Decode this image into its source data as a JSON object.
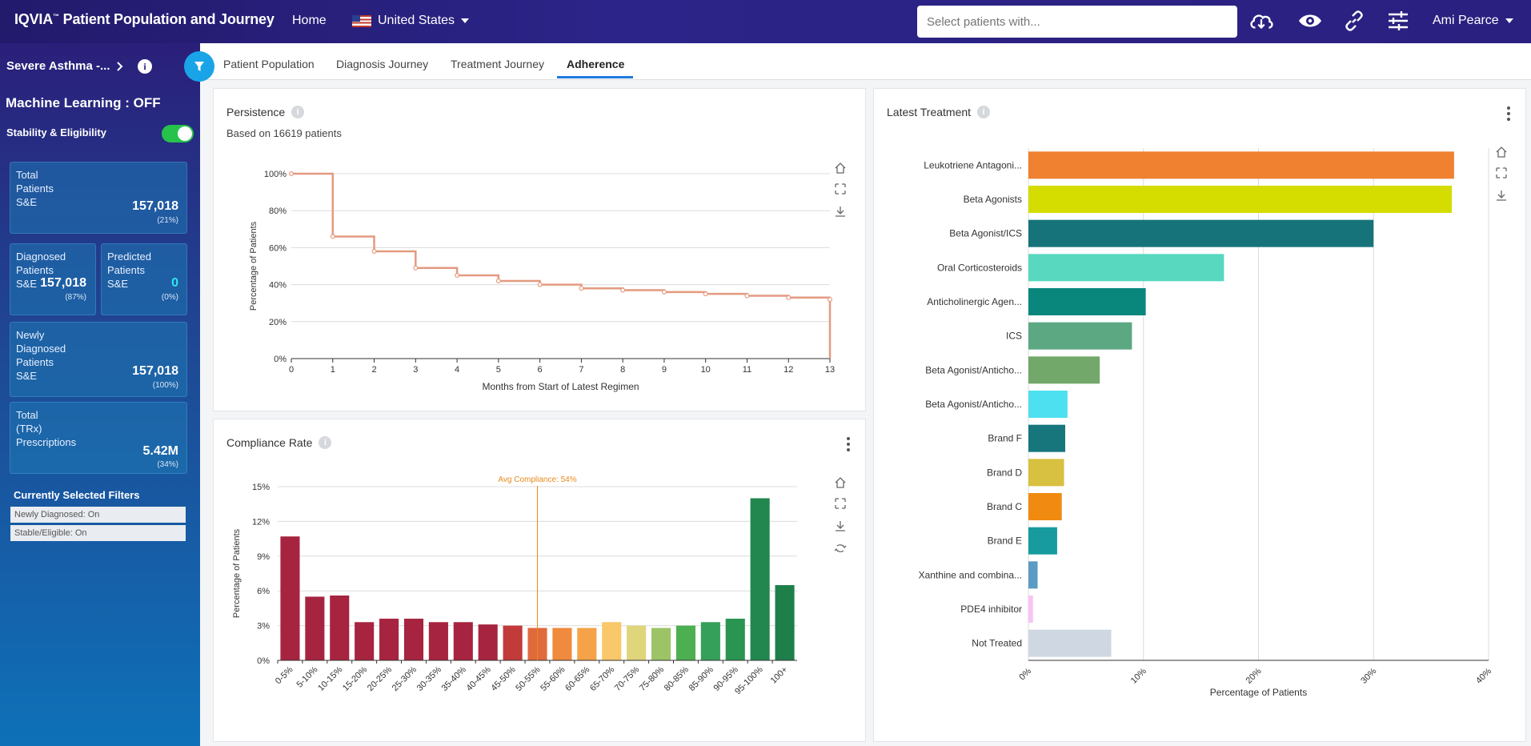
{
  "header": {
    "brand": "IQVIA",
    "brand_tm": "™",
    "app_title": "Patient Population and Journey",
    "home": "Home",
    "country": "United States",
    "search_placeholder": "Select patients with...",
    "user": "Ami Pearce"
  },
  "sidebar": {
    "cohort": "Severe Asthma -...",
    "ml_status": "Machine Learning : OFF",
    "stability_label": "Stability & Eligibility",
    "cards": {
      "total": {
        "label": "Total\nPatients\nS&E",
        "value": "157,018",
        "pct": "(21%)"
      },
      "diagnosed": {
        "label": "Diagnosed\nPatients\nS&E",
        "value": "157,018",
        "pct": "(87%)"
      },
      "predicted": {
        "label": "Predicted\nPatients\nS&E",
        "value": "0",
        "pct": "(0%)"
      },
      "newly": {
        "label": "Newly\nDiagnosed\nPatients\nS&E",
        "value": "157,018",
        "pct": "(100%)"
      },
      "trx": {
        "label": "Total\n(TRx)\nPrescriptions",
        "value": "5.42M",
        "pct": "(34%)"
      }
    },
    "filters_title": "Currently Selected Filters",
    "filters": [
      "Newly Diagnosed: On",
      "Stable/Eligible: On"
    ]
  },
  "tabs": [
    "Patient Population",
    "Diagnosis Journey",
    "Treatment Journey",
    "Adherence"
  ],
  "active_tab": "Adherence",
  "panels": {
    "persistence": {
      "title": "Persistence",
      "subtitle": "Based on 16619 patients"
    },
    "compliance": {
      "title": "Compliance Rate"
    },
    "latest": {
      "title": "Latest Treatment"
    }
  },
  "colors": {
    "step_line": "#e49a80",
    "accent": "#1e7be0"
  },
  "chart_data": [
    {
      "id": "persistence",
      "type": "line",
      "step": true,
      "xlabel": "Months from Start of Latest Regimen",
      "ylabel": "Percentage of Patients",
      "x": [
        0,
        1,
        2,
        3,
        4,
        5,
        6,
        7,
        8,
        9,
        10,
        11,
        12,
        13
      ],
      "x_ticks": [
        "0",
        "1",
        "2",
        "3",
        "4",
        "5",
        "6",
        "7",
        "8",
        "9",
        "10",
        "11",
        "12",
        "13"
      ],
      "values": [
        100,
        66,
        58,
        49,
        45,
        42,
        40,
        38,
        37,
        36,
        35,
        34,
        33,
        32
      ],
      "end_value": 0,
      "ylim": [
        0,
        100
      ],
      "y_ticks": [
        "0%",
        "20%",
        "40%",
        "60%",
        "80%",
        "100%"
      ],
      "grid": true
    },
    {
      "id": "compliance",
      "type": "bar",
      "xlabel": "",
      "ylabel": "Percentage of Patients",
      "categories": [
        "0-5%",
        "5-10%",
        "10-15%",
        "15-20%",
        "20-25%",
        "25-30%",
        "30-35%",
        "35-40%",
        "40-45%",
        "45-50%",
        "50-55%",
        "55-60%",
        "60-65%",
        "65-70%",
        "70-75%",
        "75-80%",
        "80-85%",
        "85-90%",
        "90-95%",
        "95-100%",
        "100+"
      ],
      "values": [
        10.7,
        5.5,
        5.6,
        3.3,
        3.6,
        3.6,
        3.3,
        3.3,
        3.1,
        3.0,
        2.8,
        2.8,
        2.8,
        3.3,
        3.0,
        2.8,
        3.0,
        3.3,
        3.6,
        14.0,
        6.5
      ],
      "colors": [
        "#a6243f",
        "#a6243f",
        "#a6243f",
        "#a6243f",
        "#a6243f",
        "#a6243f",
        "#a6243f",
        "#a6243f",
        "#a6243f",
        "#c23a3a",
        "#e06a3c",
        "#f08a3c",
        "#f5a248",
        "#f9c86a",
        "#dfd57a",
        "#9cc466",
        "#4caf50",
        "#35a05a",
        "#2a9452",
        "#22874f",
        "#1f7f4a"
      ],
      "ylim": [
        0,
        15
      ],
      "y_ticks": [
        "0%",
        "3%",
        "6%",
        "9%",
        "12%",
        "15%"
      ],
      "annotation": {
        "label": "Avg Compliance: 54%",
        "position": "between 50-55% and 55-60%"
      },
      "grid": true
    },
    {
      "id": "latest-treatment",
      "type": "bar",
      "orientation": "horizontal",
      "xlabel": "Percentage of Patients",
      "categories": [
        "Leukotriene Antagoni...",
        "Beta Agonists",
        "Beta Agonist/ICS",
        "Oral Corticosteroids",
        "Anticholinergic Agen...",
        "ICS",
        "Beta Agonist/Anticho...",
        "Beta Agonist/Anticho...",
        "Brand F",
        "Brand D",
        "Brand C",
        "Brand E",
        "Xanthine and combina...",
        "PDE4 inhibitor",
        "Not Treated"
      ],
      "values": [
        37.0,
        36.8,
        30.0,
        17.0,
        10.2,
        9.0,
        6.2,
        3.4,
        3.2,
        3.1,
        2.9,
        2.5,
        0.8,
        0.4,
        7.2
      ],
      "colors": [
        "#ef8131",
        "#d4dc00",
        "#16737a",
        "#57d8bf",
        "#0a877d",
        "#5ca883",
        "#72a86a",
        "#4de0f0",
        "#16767c",
        "#d8c040",
        "#f08a10",
        "#179b9e",
        "#5b9bc4",
        "#f8c4f4",
        "#cfd8e2"
      ],
      "xlim": [
        0,
        40
      ],
      "x_ticks": [
        "0%",
        "10%",
        "20%",
        "30%",
        "40%"
      ],
      "grid": true
    }
  ]
}
